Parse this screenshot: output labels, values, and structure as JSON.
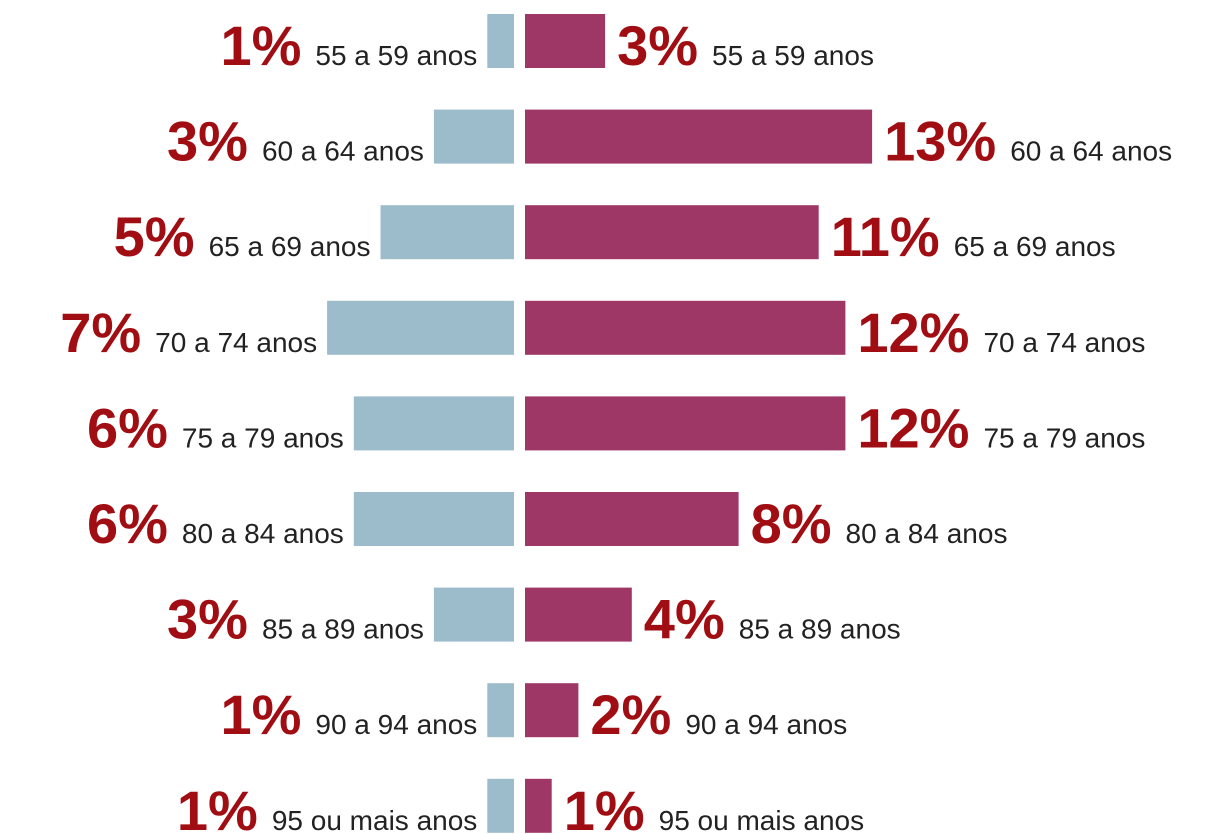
{
  "chart_data": {
    "type": "butterfly",
    "categories": [
      "55 a 59 anos",
      "60 a 64 anos",
      "65 a 69 anos",
      "70 a 74 anos",
      "75 a 79 anos",
      "80 a 84 anos",
      "85 a 89 anos",
      "90 a 94 anos",
      "95 ou mais anos"
    ],
    "series": [
      {
        "color": "#9dbccb",
        "values": [
          1,
          3,
          5,
          7,
          6,
          6,
          3,
          1,
          1
        ],
        "value_labels": [
          "1%",
          "3%",
          "5%",
          "7%",
          "6%",
          "6%",
          "3%",
          "1%",
          "1%"
        ]
      },
      {
        "color": "#9e3766",
        "values": [
          3,
          13,
          11,
          12,
          12,
          8,
          4,
          2,
          1
        ],
        "value_labels": [
          "3%",
          "13%",
          "11%",
          "12%",
          "12%",
          "8%",
          "4%",
          "2%",
          "1%"
        ]
      }
    ]
  }
}
